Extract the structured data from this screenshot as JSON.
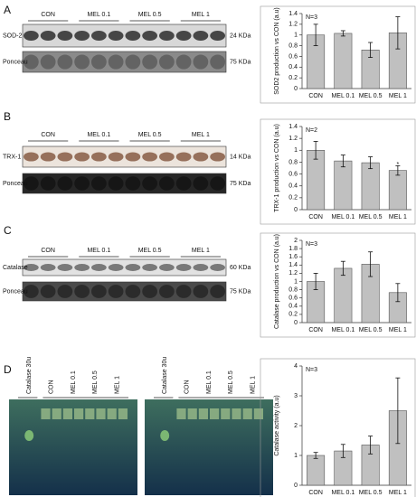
{
  "blots": [
    {
      "panel": "A",
      "lanes": [
        "CON",
        "MEL 0.1",
        "MEL 0.5",
        "MEL 1"
      ],
      "strips": [
        {
          "name": "SOD-2",
          "size": "24 KDa"
        },
        {
          "name": "Ponceau",
          "size": "75 KDa"
        }
      ]
    },
    {
      "panel": "B",
      "lanes": [
        "CON",
        "MEL 0.1",
        "MEL 0.5",
        "MEL 1"
      ],
      "strips": [
        {
          "name": "TRX-1",
          "size": "14 KDa"
        },
        {
          "name": "Ponceau",
          "size": "75 KDa"
        }
      ]
    },
    {
      "panel": "C",
      "lanes": [
        "CON",
        "MEL 0.1",
        "MEL 0.5",
        "MEL 1"
      ],
      "strips": [
        {
          "name": "Catalase",
          "size": "60 KDa"
        },
        {
          "name": "Ponceau",
          "size": "75 KDa"
        }
      ]
    }
  ],
  "gels": {
    "panel": "D",
    "items": [
      {
        "lanes": [
          "Catalase 30u",
          "CON",
          "MEL 0.1",
          "MEL 0.5",
          "MEL 1"
        ]
      },
      {
        "lanes": [
          "Catalase 30u",
          "CON",
          "MEL 0.1",
          "MEL 0.5",
          "MEL 1"
        ]
      }
    ]
  },
  "chart_data": [
    {
      "type": "bar",
      "ylabel": "SOD2 production vs CON (a.u)",
      "annotation": "N=3",
      "categories": [
        "CON",
        "MEL 0.1",
        "MEL 0.5",
        "MEL 1"
      ],
      "values": [
        1.0,
        1.03,
        0.72,
        1.04
      ],
      "errors": [
        0.2,
        0.05,
        0.14,
        0.3
      ],
      "color": "#c0c0c0",
      "ylim": [
        0,
        1.4
      ],
      "yticks": [
        0,
        0.2,
        0.4,
        0.6,
        0.8,
        1,
        1.2,
        1.4
      ]
    },
    {
      "type": "bar",
      "ylabel": "TRX-1 production vs CON (a.u)",
      "annotation": "N=2",
      "categories": [
        "CON",
        "MEL 0.1",
        "MEL 0.5",
        "MEL 1"
      ],
      "values": [
        1.0,
        0.82,
        0.79,
        0.66
      ],
      "errors": [
        0.15,
        0.1,
        0.1,
        0.08
      ],
      "significance": [
        null,
        null,
        null,
        "*"
      ],
      "color": "#c0c0c0",
      "ylim": [
        0,
        1.4
      ],
      "yticks": [
        0,
        0.2,
        0.4,
        0.6,
        0.8,
        1,
        1.2,
        1.4
      ]
    },
    {
      "type": "bar",
      "ylabel": "Catalase production vs CON (a.u)",
      "annotation": "N=3",
      "categories": [
        "CON",
        "MEL 0.1",
        "MEL 0.5",
        "MEL 1"
      ],
      "values": [
        1.0,
        1.32,
        1.42,
        0.73
      ],
      "errors": [
        0.2,
        0.17,
        0.3,
        0.22
      ],
      "color": "#c0c0c0",
      "ylim": [
        0,
        2
      ],
      "yticks": [
        0,
        0.2,
        0.4,
        0.6,
        0.8,
        1,
        1.2,
        1.4,
        1.6,
        1.8,
        2
      ]
    },
    {
      "type": "bar",
      "ylabel": "Catalase activity (a.u)",
      "annotation": "N=3",
      "categories": [
        "CON",
        "MEL 0.1",
        "MEL 0.5",
        "MEL 1"
      ],
      "values": [
        1.0,
        1.15,
        1.35,
        2.5
      ],
      "errors": [
        0.1,
        0.22,
        0.3,
        1.1
      ],
      "color": "#c0c0c0",
      "ylim": [
        0,
        4
      ],
      "yticks": [
        0,
        1,
        2,
        3,
        4
      ]
    }
  ]
}
